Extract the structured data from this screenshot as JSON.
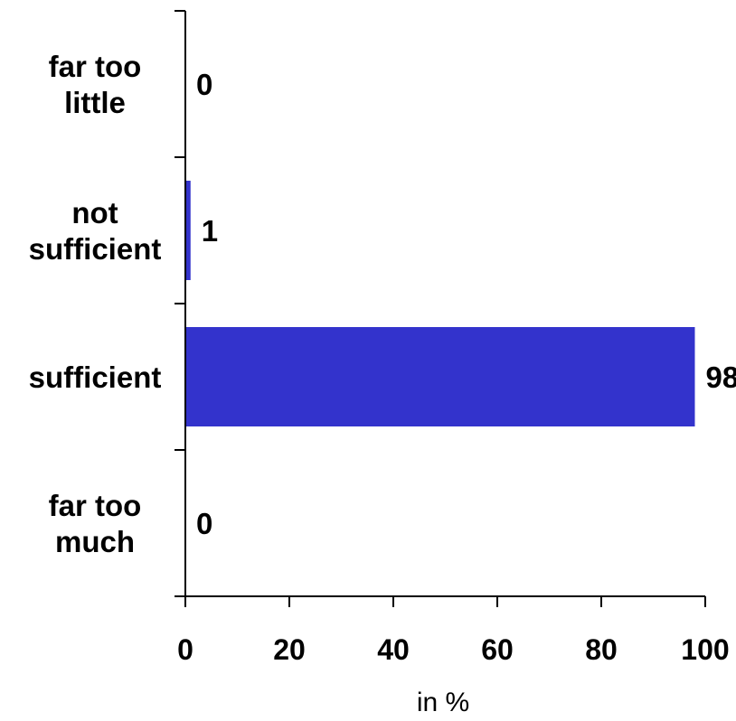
{
  "chart_data": {
    "type": "bar",
    "orientation": "horizontal",
    "categories": [
      [
        "far too",
        "little"
      ],
      [
        "not",
        "sufficient"
      ],
      [
        "sufficient"
      ],
      [
        "far too",
        "much"
      ]
    ],
    "values": [
      0,
      1,
      98,
      0
    ],
    "data_labels": [
      "0",
      "1",
      "98",
      "0"
    ],
    "xlabel": "in %",
    "ylabel": "",
    "xlim": [
      0,
      100
    ],
    "x_ticks": [
      0,
      20,
      40,
      60,
      80,
      100
    ],
    "bar_color": "#3333cc",
    "grid": false,
    "legend": "none"
  }
}
